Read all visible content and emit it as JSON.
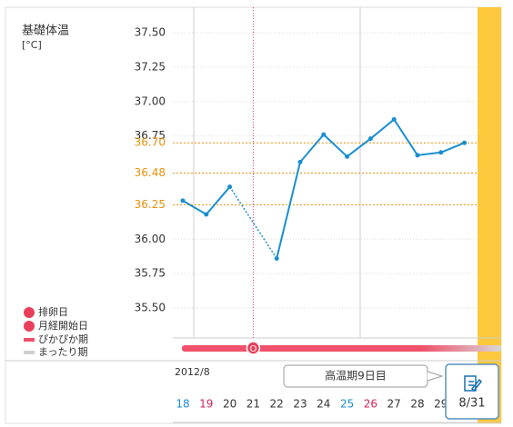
{
  "chart_data": {
    "type": "line",
    "title": "基礎体温",
    "y_unit": "[°C]",
    "month_label": "2012/8",
    "categories": [
      "18",
      "19",
      "20",
      "21",
      "22",
      "23",
      "24",
      "25",
      "26",
      "27",
      "28",
      "29",
      null,
      null
    ],
    "category_colors": [
      "#1a8fd0",
      "#d0245a",
      "#333333",
      "#333333",
      "#333333",
      "#333333",
      "#333333",
      "#1a8fd0",
      "#d0245a",
      "#333333",
      "#333333",
      "#333333",
      "#333333",
      "#333333"
    ],
    "series": [
      {
        "name": "基礎体温",
        "color": "#1a8fd0",
        "values": [
          36.28,
          36.18,
          36.38,
          null,
          35.86,
          36.56,
          36.76,
          36.6,
          36.73,
          36.87,
          36.61,
          36.63,
          36.7,
          null
        ]
      }
    ],
    "ylim": [
      35.5,
      37.5
    ],
    "yticks": [
      {
        "value": 37.5,
        "label": "37.50"
      },
      37.25,
      {
        "value": 37,
        "label": "37.00"
      },
      36.75,
      {
        "value": 36,
        "label": "36.00"
      },
      35.75,
      {
        "value": 35.5,
        "label": "35.50"
      }
    ],
    "reference_ticks": [
      {
        "value": 36.7,
        "label": "36.70"
      },
      36.48,
      36.25
    ],
    "reference_color": "#e8900c",
    "ovulation_index": 3,
    "ovulation_symbol": "O",
    "today_badge": "8/31",
    "tooltip": "高温期9日目",
    "legend": [
      "排卵日",
      "月経開始日",
      "ぴかぴか期",
      "まったり期"
    ],
    "grid": true
  }
}
